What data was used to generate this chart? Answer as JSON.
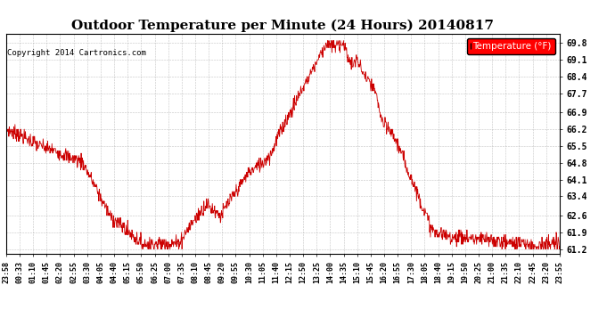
{
  "title": "Outdoor Temperature per Minute (24 Hours) 20140817",
  "copyright": "Copyright 2014 Cartronics.com",
  "legend_label": "Temperature (°F)",
  "line_color": "#CC0000",
  "background_color": "#FFFFFF",
  "grid_color": "#AAAAAA",
  "yticks": [
    61.2,
    61.9,
    62.6,
    63.4,
    64.1,
    64.8,
    65.5,
    66.2,
    66.9,
    67.7,
    68.4,
    69.1,
    69.8
  ],
  "ylim": [
    61.0,
    70.2
  ],
  "xtick_labels": [
    "23:58",
    "00:33",
    "01:10",
    "01:45",
    "02:20",
    "02:55",
    "03:30",
    "04:05",
    "04:40",
    "05:15",
    "05:50",
    "06:25",
    "07:00",
    "07:35",
    "08:10",
    "08:45",
    "09:20",
    "09:55",
    "10:30",
    "11:05",
    "11:40",
    "12:15",
    "12:50",
    "13:25",
    "14:00",
    "14:35",
    "15:10",
    "15:45",
    "16:20",
    "16:55",
    "17:30",
    "18:05",
    "18:40",
    "19:15",
    "19:50",
    "20:25",
    "21:00",
    "21:35",
    "22:10",
    "22:45",
    "23:20",
    "23:55"
  ],
  "title_fontsize": 11,
  "tick_fontsize": 7,
  "xtick_fontsize": 6
}
